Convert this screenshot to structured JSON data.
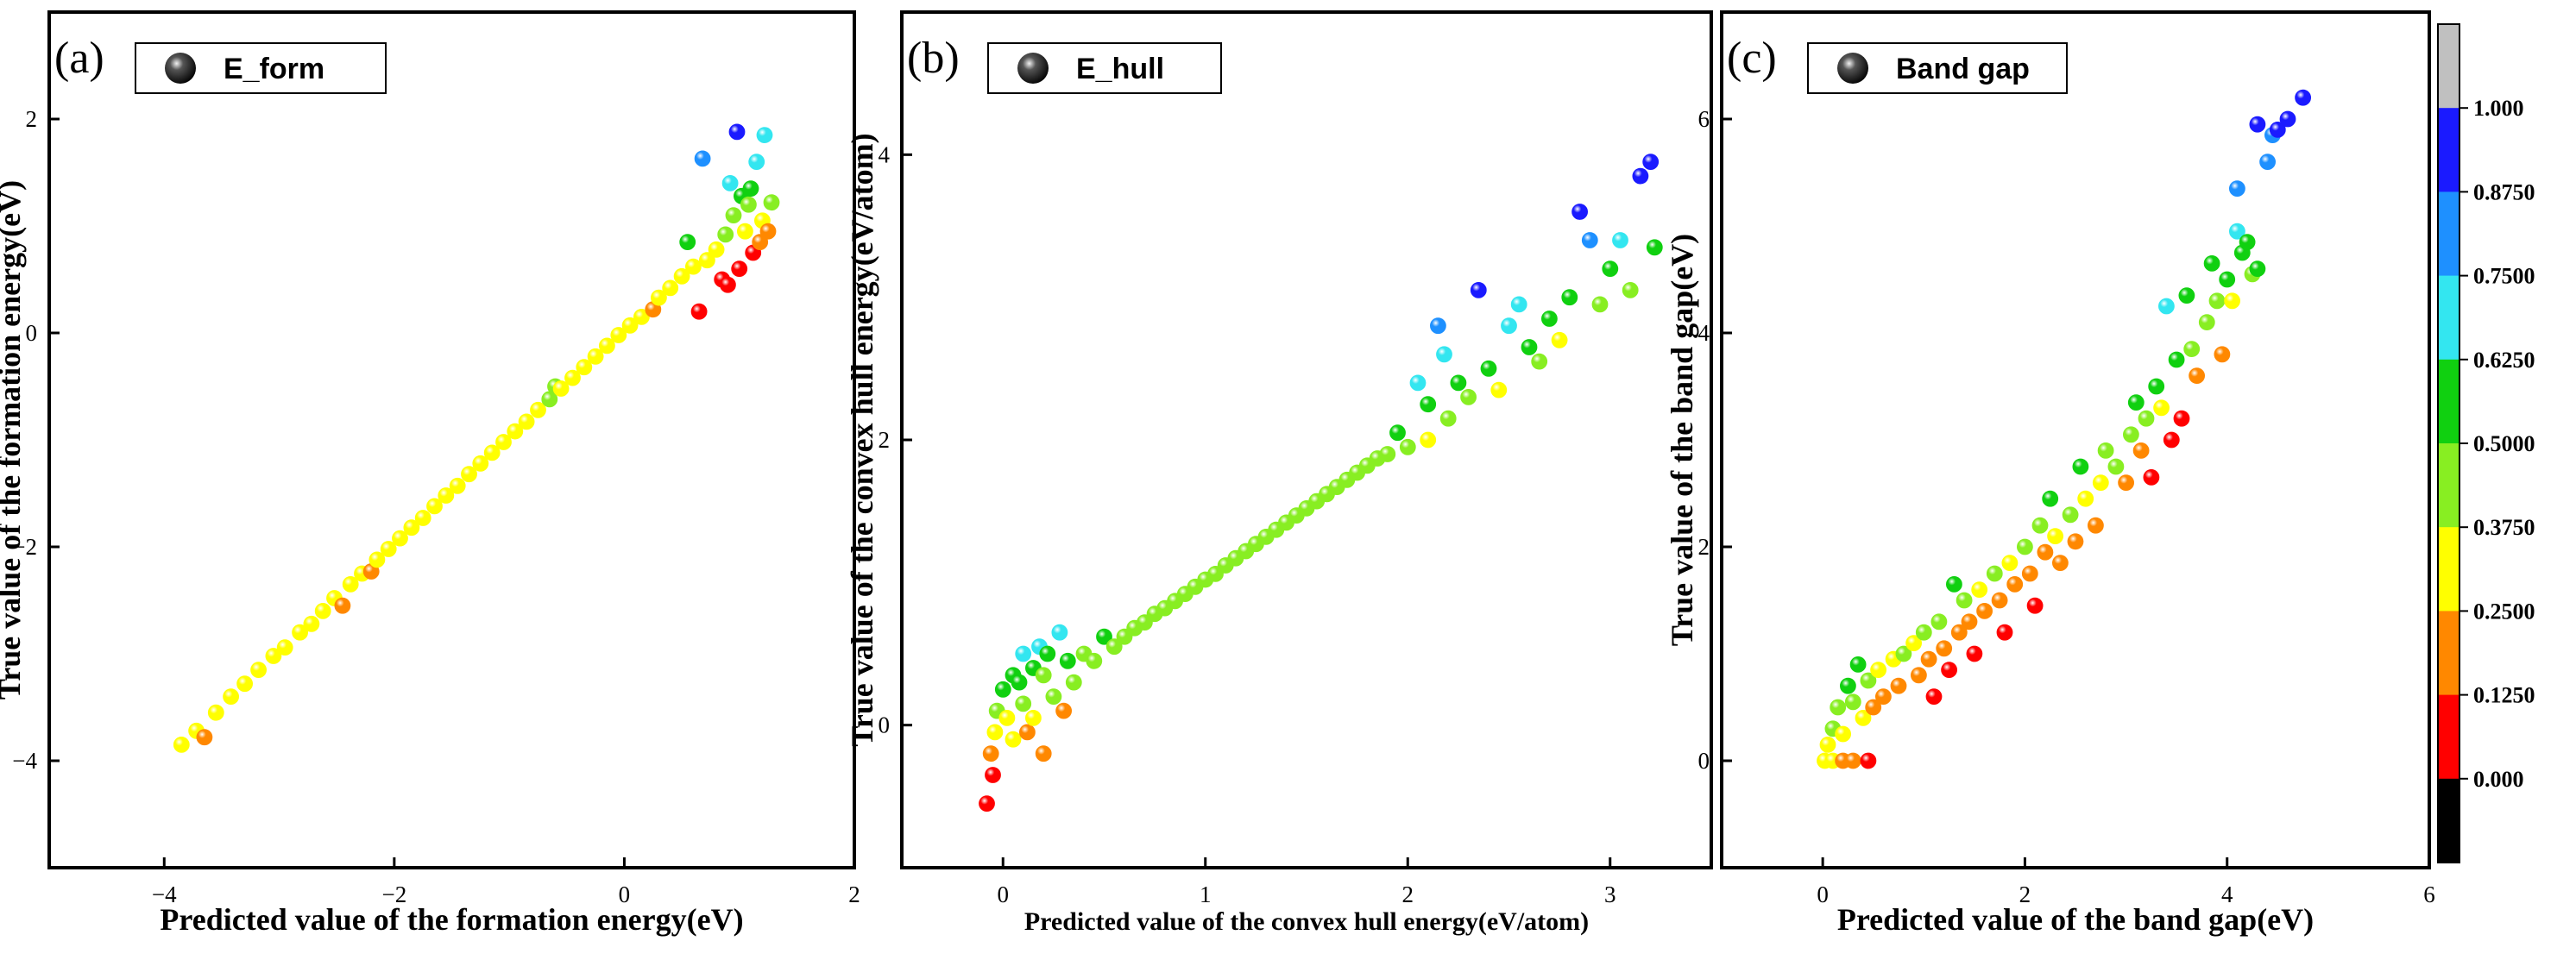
{
  "chart_data": [
    {
      "type": "scatter",
      "panel_label": "(a)",
      "legend": "E_form",
      "xlabel": "Predicted value of the formation energy(eV)",
      "ylabel": "True value of the formation energy(eV)",
      "xlim": [
        -5,
        2
      ],
      "ylim": [
        -5,
        3
      ],
      "xticks": [
        -4,
        -2,
        0,
        2
      ],
      "yticks": [
        -4,
        -2,
        0,
        2
      ],
      "xtick_labels": [
        "−4",
        "−2",
        "0",
        "2"
      ],
      "ytick_labels": [
        "−4",
        "−2",
        "0",
        "2"
      ],
      "points": [
        [
          -3.85,
          -3.85,
          0.36
        ],
        [
          -3.72,
          -3.72,
          0.37
        ],
        [
          -3.65,
          -3.78,
          0.18
        ],
        [
          -3.55,
          -3.55,
          0.36
        ],
        [
          -3.42,
          -3.4,
          0.35
        ],
        [
          -3.3,
          -3.28,
          0.36
        ],
        [
          -3.18,
          -3.15,
          0.37
        ],
        [
          -3.05,
          -3.02,
          0.36
        ],
        [
          -2.95,
          -2.94,
          0.35
        ],
        [
          -2.82,
          -2.8,
          0.36
        ],
        [
          -2.72,
          -2.72,
          0.37
        ],
        [
          -2.62,
          -2.6,
          0.36
        ],
        [
          -2.52,
          -2.48,
          0.35
        ],
        [
          -2.45,
          -2.55,
          0.2
        ],
        [
          -2.38,
          -2.35,
          0.36
        ],
        [
          -2.28,
          -2.25,
          0.37
        ],
        [
          -2.2,
          -2.23,
          0.2
        ],
        [
          -2.15,
          -2.12,
          0.36
        ],
        [
          -2.05,
          -2.02,
          0.35
        ],
        [
          -1.95,
          -1.92,
          0.36
        ],
        [
          -1.85,
          -1.82,
          0.37
        ],
        [
          -1.75,
          -1.73,
          0.36
        ],
        [
          -1.65,
          -1.62,
          0.35
        ],
        [
          -1.55,
          -1.52,
          0.36
        ],
        [
          -1.45,
          -1.43,
          0.37
        ],
        [
          -1.35,
          -1.32,
          0.36
        ],
        [
          -1.25,
          -1.22,
          0.35
        ],
        [
          -1.15,
          -1.12,
          0.36
        ],
        [
          -1.05,
          -1.02,
          0.37
        ],
        [
          -0.95,
          -0.92,
          0.36
        ],
        [
          -0.85,
          -0.83,
          0.35
        ],
        [
          -0.75,
          -0.72,
          0.36
        ],
        [
          -0.65,
          -0.62,
          0.4
        ],
        [
          -0.6,
          -0.5,
          0.48
        ],
        [
          -0.55,
          -0.52,
          0.36
        ],
        [
          -0.45,
          -0.42,
          0.37
        ],
        [
          -0.35,
          -0.32,
          0.36
        ],
        [
          -0.25,
          -0.22,
          0.35
        ],
        [
          -0.15,
          -0.12,
          0.36
        ],
        [
          -0.05,
          -0.02,
          0.37
        ],
        [
          0.05,
          0.07,
          0.36
        ],
        [
          0.15,
          0.15,
          0.35
        ],
        [
          0.25,
          0.22,
          0.2
        ],
        [
          0.3,
          0.33,
          0.36
        ],
        [
          0.4,
          0.42,
          0.36
        ],
        [
          0.5,
          0.53,
          0.37
        ],
        [
          0.55,
          0.85,
          0.52
        ],
        [
          0.6,
          0.62,
          0.36
        ],
        [
          0.65,
          0.2,
          0.1
        ],
        [
          0.68,
          1.63,
          0.85
        ],
        [
          0.72,
          0.68,
          0.36
        ],
        [
          0.8,
          0.78,
          0.37
        ],
        [
          0.85,
          0.5,
          0.05
        ],
        [
          0.88,
          0.92,
          0.38
        ],
        [
          0.9,
          0.45,
          0.02
        ],
        [
          0.92,
          1.4,
          0.68
        ],
        [
          0.95,
          1.1,
          0.45
        ],
        [
          0.98,
          1.88,
          0.94
        ],
        [
          1.02,
          1.28,
          0.55
        ],
        [
          1.05,
          0.95,
          0.25
        ],
        [
          1.08,
          1.2,
          0.42
        ],
        [
          1.12,
          0.75,
          0.08
        ],
        [
          1.15,
          1.6,
          0.7
        ],
        [
          1.18,
          0.85,
          0.18
        ],
        [
          1.2,
          1.05,
          0.35
        ],
        [
          1.22,
          1.85,
          0.72
        ],
        [
          1.25,
          0.95,
          0.22
        ],
        [
          1.28,
          1.22,
          0.38
        ],
        [
          1.1,
          1.35,
          0.5
        ],
        [
          1.0,
          0.6,
          0.12
        ]
      ]
    },
    {
      "type": "scatter",
      "panel_label": "(b)",
      "legend": "E_hull",
      "xlabel": "Predicted value of the convex hull energy(eV/atom)",
      "ylabel": "True value of the convex hull energy(eV/atom)",
      "xlim": [
        -0.5,
        3.5
      ],
      "ylim": [
        -1,
        5
      ],
      "xticks": [
        0,
        1,
        2,
        3
      ],
      "yticks": [
        0,
        2,
        4
      ],
      "xtick_labels": [
        "0",
        "1",
        "2",
        "3"
      ],
      "ytick_labels": [
        "0",
        "2",
        "4"
      ],
      "points": [
        [
          -0.08,
          -0.55,
          0.02
        ],
        [
          -0.05,
          -0.35,
          0.05
        ],
        [
          -0.06,
          -0.2,
          0.2
        ],
        [
          -0.04,
          -0.05,
          0.3
        ],
        [
          -0.03,
          0.1,
          0.42
        ],
        [
          0.0,
          0.25,
          0.55
        ],
        [
          0.02,
          0.05,
          0.36
        ],
        [
          0.05,
          -0.1,
          0.25
        ],
        [
          0.05,
          0.35,
          0.6
        ],
        [
          0.08,
          0.3,
          0.5
        ],
        [
          0.1,
          0.5,
          0.68
        ],
        [
          0.1,
          0.15,
          0.4
        ],
        [
          0.12,
          -0.05,
          0.2
        ],
        [
          0.15,
          0.4,
          0.55
        ],
        [
          0.15,
          0.05,
          0.35
        ],
        [
          0.18,
          0.55,
          0.68
        ],
        [
          0.2,
          0.35,
          0.45
        ],
        [
          0.2,
          -0.2,
          0.15
        ],
        [
          0.22,
          0.5,
          0.55
        ],
        [
          0.25,
          0.2,
          0.4
        ],
        [
          0.28,
          0.65,
          0.68
        ],
        [
          0.3,
          0.1,
          0.2
        ],
        [
          0.32,
          0.45,
          0.5
        ],
        [
          0.35,
          0.3,
          0.38
        ],
        [
          0.4,
          0.5,
          0.48
        ],
        [
          0.45,
          0.45,
          0.38
        ],
        [
          0.5,
          0.62,
          0.5
        ],
        [
          0.55,
          0.55,
          0.4
        ],
        [
          0.6,
          0.62,
          0.42
        ],
        [
          0.65,
          0.68,
          0.44
        ],
        [
          0.7,
          0.72,
          0.43
        ],
        [
          0.75,
          0.78,
          0.44
        ],
        [
          0.8,
          0.82,
          0.43
        ],
        [
          0.85,
          0.87,
          0.44
        ],
        [
          0.9,
          0.92,
          0.43
        ],
        [
          0.95,
          0.97,
          0.44
        ],
        [
          1.0,
          1.02,
          0.43
        ],
        [
          1.05,
          1.06,
          0.44
        ],
        [
          1.1,
          1.12,
          0.43
        ],
        [
          1.15,
          1.17,
          0.44
        ],
        [
          1.2,
          1.22,
          0.43
        ],
        [
          1.25,
          1.27,
          0.44
        ],
        [
          1.3,
          1.32,
          0.43
        ],
        [
          1.35,
          1.37,
          0.44
        ],
        [
          1.4,
          1.42,
          0.43
        ],
        [
          1.45,
          1.47,
          0.44
        ],
        [
          1.5,
          1.52,
          0.43
        ],
        [
          1.55,
          1.57,
          0.44
        ],
        [
          1.6,
          1.62,
          0.43
        ],
        [
          1.65,
          1.67,
          0.44
        ],
        [
          1.7,
          1.72,
          0.43
        ],
        [
          1.75,
          1.77,
          0.44
        ],
        [
          1.8,
          1.82,
          0.43
        ],
        [
          1.85,
          1.87,
          0.44
        ],
        [
          1.9,
          1.9,
          0.4
        ],
        [
          1.95,
          2.05,
          0.5
        ],
        [
          2.0,
          1.95,
          0.4
        ],
        [
          2.05,
          2.4,
          0.68
        ],
        [
          2.1,
          2.0,
          0.36
        ],
        [
          2.1,
          2.25,
          0.5
        ],
        [
          2.15,
          2.8,
          0.82
        ],
        [
          2.18,
          2.6,
          0.7
        ],
        [
          2.2,
          2.15,
          0.38
        ],
        [
          2.25,
          2.4,
          0.52
        ],
        [
          2.3,
          2.3,
          0.4
        ],
        [
          2.35,
          3.05,
          0.9
        ],
        [
          2.4,
          2.5,
          0.52
        ],
        [
          2.45,
          2.35,
          0.36
        ],
        [
          2.5,
          2.8,
          0.7
        ],
        [
          2.55,
          2.95,
          0.72
        ],
        [
          2.6,
          2.65,
          0.5
        ],
        [
          2.65,
          2.55,
          0.4
        ],
        [
          2.7,
          2.85,
          0.55
        ],
        [
          2.75,
          2.7,
          0.36
        ],
        [
          2.8,
          3.0,
          0.52
        ],
        [
          2.85,
          3.6,
          0.88
        ],
        [
          2.9,
          3.4,
          0.75
        ],
        [
          2.95,
          2.95,
          0.4
        ],
        [
          3.0,
          3.2,
          0.55
        ],
        [
          3.05,
          3.4,
          0.68
        ],
        [
          3.1,
          3.05,
          0.38
        ],
        [
          3.15,
          3.85,
          0.9
        ],
        [
          3.2,
          3.95,
          0.95
        ],
        [
          3.22,
          3.35,
          0.52
        ]
      ]
    },
    {
      "type": "scatter",
      "panel_label": "(c)",
      "legend": "Band gap",
      "xlabel": "Predicted value of the band gap(eV)",
      "ylabel": "True value of the band gap(eV)",
      "xlim": [
        -1,
        6
      ],
      "ylim": [
        -1,
        7
      ],
      "xticks": [
        0,
        2,
        4,
        6
      ],
      "yticks": [
        0,
        2,
        4,
        6
      ],
      "xtick_labels": [
        "0",
        "2",
        "4",
        "6"
      ],
      "ytick_labels": [
        "0",
        "2",
        "4",
        "6"
      ],
      "points": [
        [
          0.02,
          0.0,
          0.36
        ],
        [
          0.1,
          0.0,
          0.36
        ],
        [
          0.2,
          0.0,
          0.2
        ],
        [
          0.3,
          0.0,
          0.18
        ],
        [
          0.45,
          0.0,
          0.05
        ],
        [
          0.05,
          0.15,
          0.36
        ],
        [
          0.1,
          0.3,
          0.38
        ],
        [
          0.15,
          0.5,
          0.45
        ],
        [
          0.2,
          0.25,
          0.36
        ],
        [
          0.25,
          0.7,
          0.5
        ],
        [
          0.3,
          0.55,
          0.4
        ],
        [
          0.35,
          0.9,
          0.52
        ],
        [
          0.4,
          0.4,
          0.3
        ],
        [
          0.45,
          0.75,
          0.38
        ],
        [
          0.5,
          0.5,
          0.2
        ],
        [
          0.55,
          0.85,
          0.36
        ],
        [
          0.6,
          0.6,
          0.15
        ],
        [
          0.7,
          0.95,
          0.36
        ],
        [
          0.75,
          0.7,
          0.18
        ],
        [
          0.8,
          1.0,
          0.38
        ],
        [
          0.9,
          1.1,
          0.36
        ],
        [
          0.95,
          0.8,
          0.2
        ],
        [
          1.0,
          1.2,
          0.38
        ],
        [
          1.05,
          0.95,
          0.18
        ],
        [
          1.1,
          0.6,
          0.05
        ],
        [
          1.15,
          1.3,
          0.38
        ],
        [
          1.2,
          1.05,
          0.2
        ],
        [
          1.25,
          0.85,
          0.05
        ],
        [
          1.3,
          1.65,
          0.5
        ],
        [
          1.35,
          1.2,
          0.2
        ],
        [
          1.4,
          1.5,
          0.38
        ],
        [
          1.45,
          1.3,
          0.2
        ],
        [
          1.5,
          1.0,
          0.05
        ],
        [
          1.55,
          1.6,
          0.36
        ],
        [
          1.6,
          1.4,
          0.18
        ],
        [
          1.7,
          1.75,
          0.38
        ],
        [
          1.75,
          1.5,
          0.2
        ],
        [
          1.8,
          1.2,
          0.05
        ],
        [
          1.85,
          1.85,
          0.36
        ],
        [
          1.9,
          1.65,
          0.18
        ],
        [
          2.0,
          2.0,
          0.38
        ],
        [
          2.05,
          1.75,
          0.2
        ],
        [
          2.1,
          1.45,
          0.05
        ],
        [
          2.15,
          2.2,
          0.4
        ],
        [
          2.2,
          1.95,
          0.2
        ],
        [
          2.25,
          2.45,
          0.5
        ],
        [
          2.3,
          2.1,
          0.36
        ],
        [
          2.35,
          1.85,
          0.15
        ],
        [
          2.45,
          2.3,
          0.38
        ],
        [
          2.5,
          2.05,
          0.18
        ],
        [
          2.55,
          2.75,
          0.5
        ],
        [
          2.6,
          2.45,
          0.36
        ],
        [
          2.7,
          2.2,
          0.15
        ],
        [
          2.75,
          2.6,
          0.36
        ],
        [
          2.8,
          2.9,
          0.42
        ],
        [
          2.9,
          2.75,
          0.38
        ],
        [
          3.0,
          2.6,
          0.15
        ],
        [
          3.05,
          3.05,
          0.45
        ],
        [
          3.1,
          3.35,
          0.52
        ],
        [
          3.15,
          2.9,
          0.2
        ],
        [
          3.2,
          3.2,
          0.38
        ],
        [
          3.25,
          2.65,
          0.05
        ],
        [
          3.3,
          3.5,
          0.5
        ],
        [
          3.35,
          3.3,
          0.36
        ],
        [
          3.4,
          4.25,
          0.72
        ],
        [
          3.45,
          3.0,
          0.08
        ],
        [
          3.5,
          3.75,
          0.5
        ],
        [
          3.55,
          3.2,
          0.05
        ],
        [
          3.6,
          4.35,
          0.55
        ],
        [
          3.65,
          3.85,
          0.38
        ],
        [
          3.7,
          3.6,
          0.2
        ],
        [
          3.8,
          4.1,
          0.42
        ],
        [
          3.85,
          4.65,
          0.52
        ],
        [
          3.9,
          4.3,
          0.38
        ],
        [
          3.95,
          3.8,
          0.15
        ],
        [
          4.0,
          4.5,
          0.52
        ],
        [
          4.05,
          4.3,
          0.36
        ],
        [
          4.1,
          4.95,
          0.7
        ],
        [
          4.1,
          5.35,
          0.78
        ],
        [
          4.15,
          4.75,
          0.5
        ],
        [
          4.2,
          4.85,
          0.52
        ],
        [
          4.25,
          4.55,
          0.38
        ],
        [
          4.3,
          4.6,
          0.5
        ],
        [
          4.3,
          5.95,
          0.92
        ],
        [
          4.4,
          5.6,
          0.82
        ],
        [
          4.45,
          5.85,
          0.85
        ],
        [
          4.5,
          5.9,
          0.88
        ],
        [
          4.6,
          6.0,
          0.9
        ],
        [
          4.75,
          6.2,
          0.95
        ]
      ]
    }
  ],
  "colorbar": {
    "tick_labels": [
      "1.000",
      "0.8750",
      "0.7500",
      "0.6250",
      "0.5000",
      "0.3750",
      "0.2500",
      "0.1250",
      "0.000"
    ],
    "bands": [
      {
        "color": "#c0c0c0"
      },
      {
        "color": "#1a1aff"
      },
      {
        "color": "#1e90ff"
      },
      {
        "color": "#33e6f0"
      },
      {
        "color": "#10d010"
      },
      {
        "color": "#88ee22"
      },
      {
        "color": "#ffff00"
      },
      {
        "color": "#ff8800"
      },
      {
        "color": "#ff0000"
      },
      {
        "color": "#000000"
      }
    ]
  },
  "scale_colors": [
    "#ff0000",
    "#ff8800",
    "#ffff00",
    "#88ee22",
    "#10d010",
    "#33e6f0",
    "#1e90ff",
    "#1a1aff"
  ]
}
